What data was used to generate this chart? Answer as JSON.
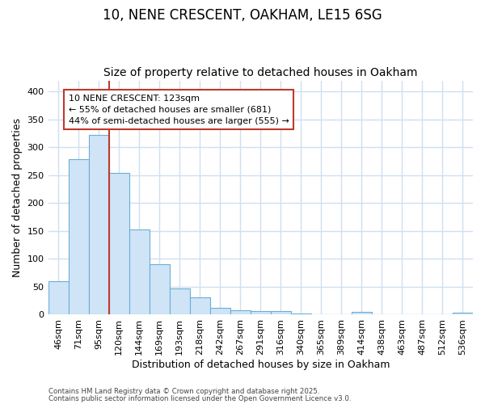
{
  "title1": "10, NENE CRESCENT, OAKHAM, LE15 6SG",
  "title2": "Size of property relative to detached houses in Oakham",
  "xlabel": "Distribution of detached houses by size in Oakham",
  "ylabel": "Number of detached properties",
  "categories": [
    "46sqm",
    "71sqm",
    "95sqm",
    "120sqm",
    "144sqm",
    "169sqm",
    "193sqm",
    "218sqm",
    "242sqm",
    "267sqm",
    "291sqm",
    "316sqm",
    "340sqm",
    "365sqm",
    "389sqm",
    "414sqm",
    "438sqm",
    "463sqm",
    "487sqm",
    "512sqm",
    "536sqm"
  ],
  "values": [
    60,
    278,
    322,
    254,
    153,
    90,
    46,
    31,
    12,
    7,
    6,
    6,
    1,
    0,
    0,
    4,
    0,
    0,
    0,
    0,
    3
  ],
  "bar_color": "#d0e4f7",
  "bar_edge_color": "#6aaed6",
  "vline_index": 3,
  "vline_color": "#c0392b",
  "annotation_text": "10 NENE CRESCENT: 123sqm\n← 55% of detached houses are smaller (681)\n44% of semi-detached houses are larger (555) →",
  "annotation_box_color": "white",
  "annotation_box_edge_color": "#c0392b",
  "background_color": "#ffffff",
  "grid_color": "#d0dff0",
  "ylim": [
    0,
    420
  ],
  "yticks": [
    0,
    50,
    100,
    150,
    200,
    250,
    300,
    350,
    400
  ],
  "footer1": "Contains HM Land Registry data © Crown copyright and database right 2025.",
  "footer2": "Contains public sector information licensed under the Open Government Licence v3.0.",
  "title1_fontsize": 12,
  "title2_fontsize": 10,
  "tick_fontsize": 8,
  "xlabel_fontsize": 9,
  "ylabel_fontsize": 9,
  "annotation_fontsize": 8
}
